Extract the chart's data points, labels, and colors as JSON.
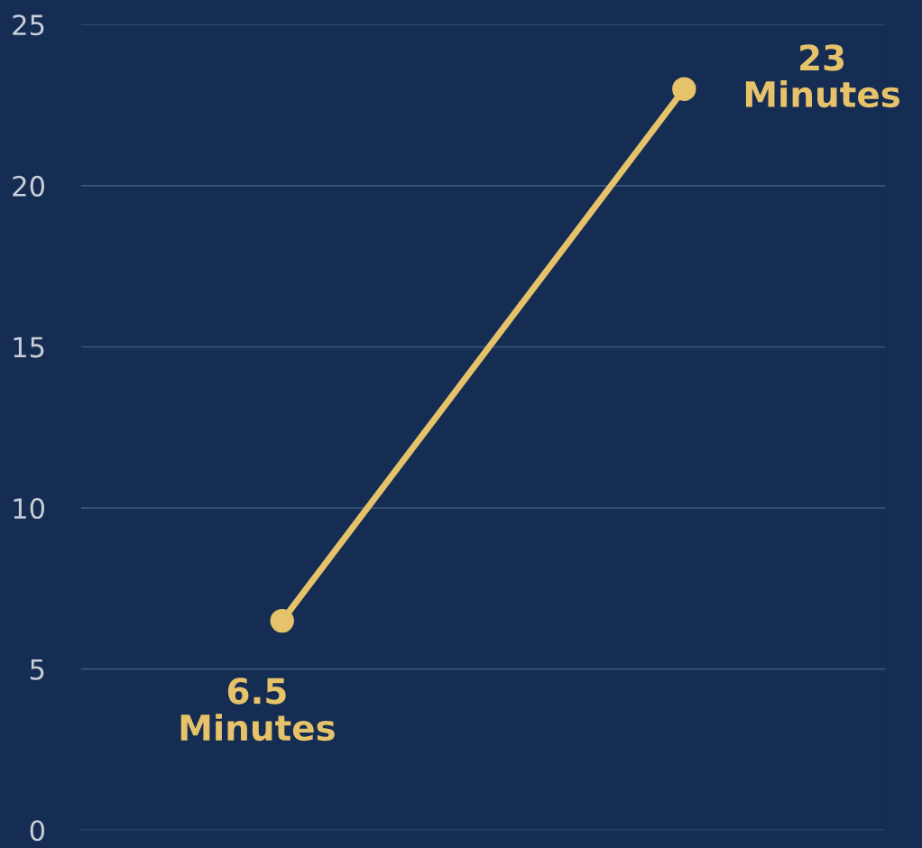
{
  "chart_data": {
    "type": "line",
    "categories": [
      null,
      null
    ],
    "series": [
      {
        "color": "#e6c36a",
        "values": [
          6.5,
          23
        ],
        "value_labels": [
          "6.5\nMinutes",
          "23\nMinutes"
        ]
      }
    ],
    "ylim": [
      0,
      25
    ],
    "yticks": [
      0,
      5,
      10,
      15,
      20,
      25
    ],
    "grid": "y",
    "marker": "circle",
    "line_style": "solid",
    "tick_labels": "y"
  }
}
